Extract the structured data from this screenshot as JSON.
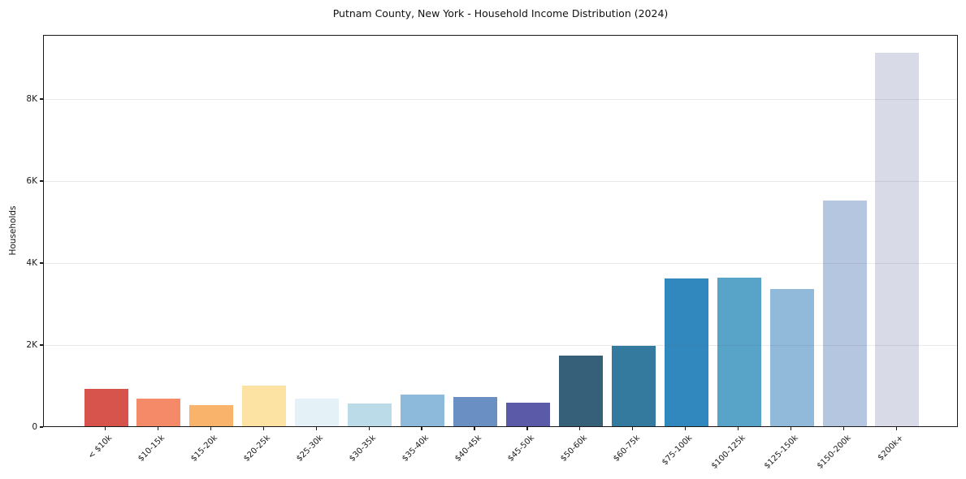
{
  "chart_data": {
    "type": "bar",
    "title": "Putnam County, New York - Household Income Distribution (2024)",
    "xlabel": "",
    "ylabel": "Households",
    "categories": [
      "< $10k",
      "$10-15k",
      "$15-20k",
      "$20-25k",
      "$25-30k",
      "$30-35k",
      "$35-40k",
      "$40-45k",
      "$45-50k",
      "$50-60k",
      "$60-75k",
      "$75-100k",
      "$100-125k",
      "$125-150k",
      "$150-200k",
      "$200k+"
    ],
    "values": [
      910,
      670,
      520,
      990,
      680,
      560,
      780,
      710,
      580,
      1730,
      1960,
      3600,
      3630,
      3340,
      5510,
      9100
    ],
    "bar_colors": [
      "#d6544c",
      "#f48a68",
      "#f9b36a",
      "#fde3a3",
      "#e4f1f7",
      "#bbdbe9",
      "#8db9da",
      "#6a8fc2",
      "#5b5aa8",
      "#365f7a",
      "#337a9e",
      "#3188bf",
      "#58a4c8",
      "#90b9da",
      "#b5c7e0",
      "#d8dae8"
    ],
    "yticks": [
      {
        "value": 0,
        "label": "0"
      },
      {
        "value": 2000,
        "label": "2K"
      },
      {
        "value": 4000,
        "label": "4K"
      },
      {
        "value": 6000,
        "label": "6K"
      },
      {
        "value": 8000,
        "label": "8K"
      }
    ],
    "ylim": [
      0,
      9564
    ],
    "grid": "horizontal",
    "legend": "none",
    "axis_color": "#1a1a1a",
    "background_color": "#ffffff"
  }
}
